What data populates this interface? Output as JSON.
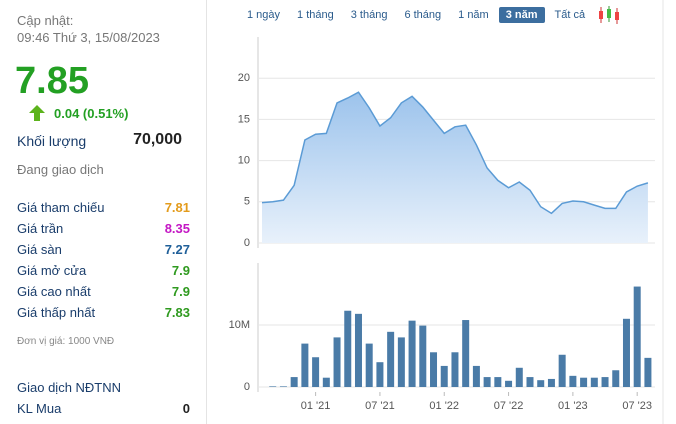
{
  "header": {
    "updated_label": "Cập nhật:",
    "updated_time": "09:46 Thứ 3, 15/08/2023"
  },
  "price": {
    "value": "7.85",
    "change": "0.04 (0.51%)"
  },
  "volume": {
    "label": "Khối lượng",
    "value": "70,000"
  },
  "status": "Đang giao dịch",
  "stats": [
    {
      "label": "Giá tham chiếu",
      "value": "7.81"
    },
    {
      "label": "Giá trần",
      "value": "8.35"
    },
    {
      "label": "Giá sàn",
      "value": "7.27"
    },
    {
      "label": "Giá mở cửa",
      "value": "7.9"
    },
    {
      "label": "Giá cao nhất",
      "value": "7.9"
    },
    {
      "label": "Giá thấp nhất",
      "value": "7.83"
    }
  ],
  "unit_note": "Đơn vị giá: 1000 VNĐ",
  "foreign": {
    "title": "Giao dịch NĐTNN",
    "rows": [
      {
        "label": "KL Mua",
        "value": "0"
      }
    ]
  },
  "range_buttons": [
    "1 ngày",
    "1 tháng",
    "3 tháng",
    "6 tháng",
    "1 năm",
    "3 năm",
    "Tất cả"
  ],
  "chart_data": [
    {
      "type": "area",
      "categories": [
        null,
        null,
        null,
        null,
        null,
        "01 '21",
        null,
        null,
        null,
        null,
        null,
        "07 '21",
        null,
        null,
        null,
        null,
        null,
        "01 '22",
        null,
        null,
        null,
        null,
        null,
        "07 '22",
        null,
        null,
        null,
        null,
        null,
        "01 '23",
        null,
        null,
        null,
        null,
        null,
        "07 '23",
        null
      ],
      "values": [
        4.9,
        5.0,
        5.2,
        7.0,
        12.5,
        13.2,
        13.3,
        17.0,
        17.6,
        18.3,
        16.4,
        14.2,
        15.2,
        17.0,
        17.8,
        16.5,
        14.9,
        13.3,
        14.1,
        14.3,
        11.9,
        9.1,
        7.6,
        6.7,
        7.4,
        6.4,
        4.4,
        3.6,
        4.8,
        5.1,
        5.0,
        4.6,
        4.2,
        4.2,
        6.2,
        6.9,
        7.3
      ],
      "color": "#5b9bd5",
      "ylim": [
        0,
        25
      ],
      "yticks": [
        0,
        5,
        10,
        15,
        20
      ],
      "grid": true
    },
    {
      "type": "bar",
      "categories": [
        null,
        null,
        null,
        null,
        null,
        "01 '21",
        null,
        null,
        null,
        null,
        null,
        "07 '21",
        null,
        null,
        null,
        null,
        null,
        "01 '22",
        null,
        null,
        null,
        null,
        null,
        "07 '22",
        null,
        null,
        null,
        null,
        null,
        "01 '23",
        null,
        null,
        null,
        null,
        null,
        "07 '23",
        null
      ],
      "values": [
        null,
        100000,
        100000,
        1600000,
        7000000,
        4800000,
        1500000,
        8000000,
        12300000,
        11800000,
        7000000,
        4000000,
        8900000,
        8000000,
        10700000,
        9900000,
        5600000,
        3400000,
        5600000,
        10800000,
        3400000,
        1600000,
        1600000,
        1000000,
        3100000,
        1600000,
        1100000,
        1300000,
        5200000,
        1800000,
        1500000,
        1500000,
        1600000,
        2700000,
        11000000,
        16200000,
        4700000
      ],
      "color": "#4a7ba7",
      "ylim": [
        0,
        20000000
      ],
      "yticks": [
        0,
        {
          "value": 10000000,
          "label": "10M"
        }
      ],
      "grid": true
    }
  ]
}
